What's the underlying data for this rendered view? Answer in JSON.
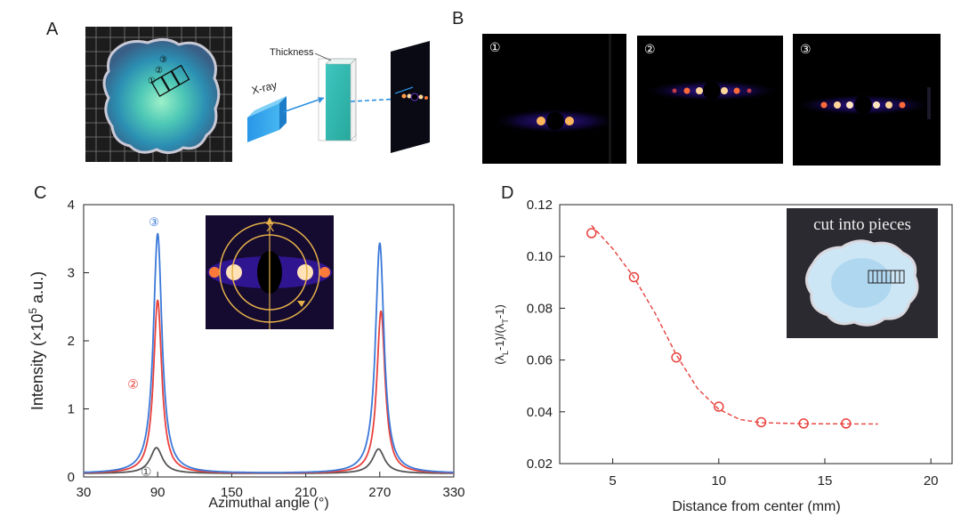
{
  "panels": {
    "a": "A",
    "b": "B",
    "c": "C",
    "d": "D"
  },
  "panel_a": {
    "region_marks": [
      "①",
      "②",
      "③"
    ],
    "thickness_label": "Thickness",
    "xray_label": "X-ray"
  },
  "panel_b": {
    "labels": [
      "①",
      "②",
      "③"
    ]
  },
  "chart_data": [
    {
      "type": "line",
      "xlabel": "Azimuthal  angle (°)",
      "ylabel": "Intensity (×10⁵ a.u.)",
      "ylabel_parts": {
        "pre": "Intensity (×10",
        "sup": "5",
        "post": " a.u.)"
      },
      "xlim": [
        30,
        330
      ],
      "ylim": [
        0,
        4
      ],
      "xticks": [
        30,
        90,
        150,
        210,
        270,
        330
      ],
      "yticks": [
        0,
        1,
        2,
        3,
        4
      ],
      "series": [
        {
          "name": "①",
          "color": "#555555",
          "baseline": 0.05,
          "peaks": [
            {
              "x": 89,
              "y": 0.43
            },
            {
              "x": 269,
              "y": 0.41
            }
          ],
          "width": 6
        },
        {
          "name": "②",
          "color": "#e8413d",
          "baseline": 0.05,
          "peaks": [
            {
              "x": 90,
              "y": 2.6
            },
            {
              "x": 271,
              "y": 2.44
            }
          ],
          "width": 4
        },
        {
          "name": "③",
          "color": "#3a78d8",
          "baseline": 0.05,
          "peaks": [
            {
              "x": 90,
              "y": 3.58
            },
            {
              "x": 270,
              "y": 3.44
            }
          ],
          "width": 4.2
        }
      ],
      "inset_axis_label": "X"
    },
    {
      "type": "scatter",
      "xlabel": "Distance from center (mm)",
      "ylabel": "(λL-1)/(λT-1)",
      "ylabel_parts": {
        "p1": "(λ",
        "s1": "L",
        "p2": "-1)/(λ",
        "s2": "T",
        "p3": "-1)"
      },
      "xlim": [
        2.5,
        21
      ],
      "ylim": [
        0.02,
        0.12
      ],
      "xticks": [
        5,
        10,
        15,
        20
      ],
      "yticks": [
        0.02,
        0.04,
        0.06,
        0.08,
        0.1,
        0.12
      ],
      "ytick_labels": [
        "0.02",
        "0.04",
        "0.06",
        "0.08",
        "0.10",
        "0.12"
      ],
      "points": [
        {
          "x": 4,
          "y": 0.109
        },
        {
          "x": 6,
          "y": 0.092
        },
        {
          "x": 8,
          "y": 0.061
        },
        {
          "x": 10,
          "y": 0.042
        },
        {
          "x": 12,
          "y": 0.036
        },
        {
          "x": 14,
          "y": 0.0355
        },
        {
          "x": 16,
          "y": 0.0355
        }
      ],
      "fit": [
        {
          "x": 4.0,
          "y": 0.112
        },
        {
          "x": 5,
          "y": 0.103
        },
        {
          "x": 6,
          "y": 0.092
        },
        {
          "x": 7,
          "y": 0.078
        },
        {
          "x": 8,
          "y": 0.062
        },
        {
          "x": 9,
          "y": 0.049
        },
        {
          "x": 10,
          "y": 0.041
        },
        {
          "x": 11,
          "y": 0.037
        },
        {
          "x": 12,
          "y": 0.0358
        },
        {
          "x": 14,
          "y": 0.0354
        },
        {
          "x": 17.5,
          "y": 0.0353
        }
      ],
      "color": "#e8413d",
      "inset_text": "cut into pieces"
    }
  ]
}
